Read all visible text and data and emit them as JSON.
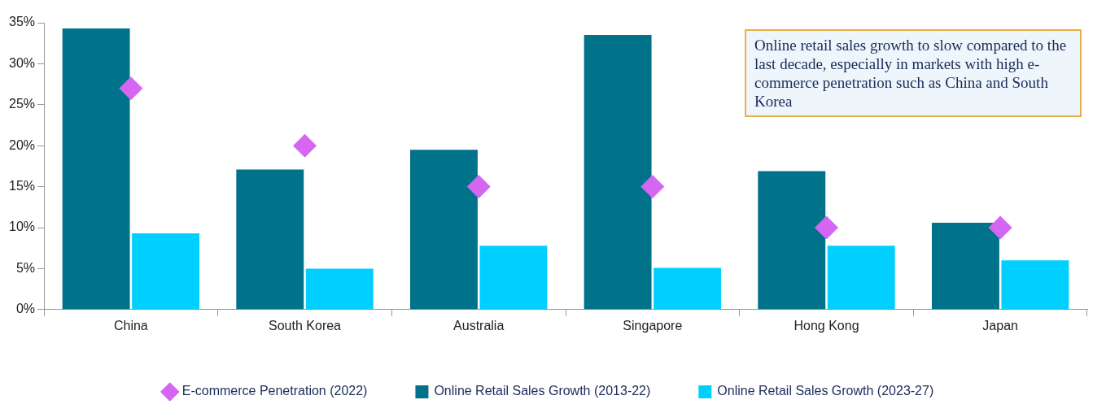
{
  "chart_data": {
    "type": "bar",
    "categories": [
      "China",
      "South Korea",
      "Australia",
      "Singapore",
      "Hong Kong",
      "Japan"
    ],
    "series": [
      {
        "name": "Online Retail Sales Growth (2013-22)",
        "color": "#00728a",
        "values": [
          34.3,
          17.1,
          19.5,
          33.5,
          16.9,
          10.6
        ]
      },
      {
        "name": "Online Retail Sales Growth (2023-27)",
        "color": "#00cfff",
        "values": [
          9.3,
          5.0,
          7.8,
          5.1,
          7.8,
          6.0
        ]
      },
      {
        "name": "E-commerce Penetration (2022)",
        "type": "scatter",
        "color": "#d466f2",
        "values": [
          27,
          20,
          15,
          15,
          10,
          10
        ]
      }
    ],
    "ylim": [
      0,
      35
    ],
    "yticks": [
      {
        "value": 0,
        "label": "0%"
      },
      {
        "value": 5,
        "label": "5%"
      },
      {
        "value": 10,
        "label": "10%"
      },
      {
        "value": 15,
        "label": "15%"
      },
      {
        "value": 20,
        "label": "20%"
      },
      {
        "value": 25,
        "label": "25%"
      },
      {
        "value": 30,
        "label": "30%"
      },
      {
        "value": 35,
        "label": "35%"
      }
    ],
    "annotations": [
      "Online retail sales growth to slow compared to the last decade, especially in markets with high e-commerce penetration such as China and South Korea"
    ],
    "grid": false,
    "legend": "bottom",
    "marker": "diamond"
  }
}
